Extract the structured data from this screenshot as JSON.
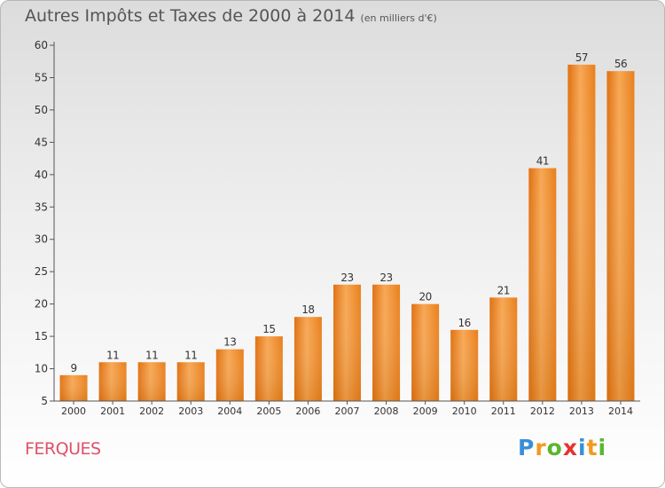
{
  "title": "Autres Impôts et Taxes de 2000 à 2014",
  "subtitle": "(en milliers d'€)",
  "commune": "FERQUES",
  "brand": {
    "letters": [
      "P",
      "r",
      "o",
      "x",
      "i",
      "t",
      "i"
    ],
    "colors": [
      "#3a8fd6",
      "#f39a1e",
      "#5cb531",
      "#e8312f",
      "#3a8fd6",
      "#f39a1e",
      "#5cb531"
    ]
  },
  "colors": {
    "bar": "#f08a24",
    "axis": "#666666",
    "label": "#333333"
  },
  "chart_data": {
    "type": "bar",
    "categories": [
      "2000",
      "2001",
      "2002",
      "2003",
      "2004",
      "2005",
      "2006",
      "2007",
      "2008",
      "2009",
      "2010",
      "2011",
      "2012",
      "2013",
      "2014"
    ],
    "values": [
      9,
      11,
      11,
      11,
      13,
      15,
      18,
      23,
      23,
      20,
      16,
      21,
      41,
      57,
      56
    ],
    "ylim": [
      5,
      60
    ],
    "yticks": [
      5,
      10,
      15,
      20,
      25,
      30,
      35,
      40,
      45,
      50,
      55,
      60
    ],
    "title": "Autres Impôts et Taxes de 2000 à 2014",
    "xlabel": "",
    "ylabel": ""
  }
}
